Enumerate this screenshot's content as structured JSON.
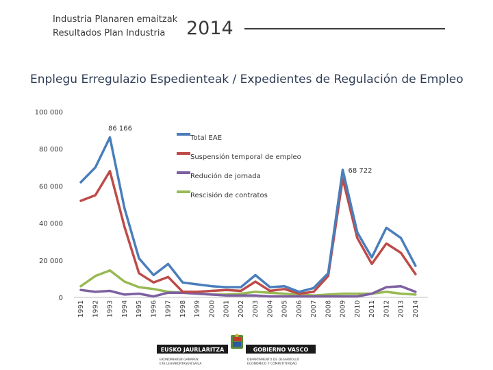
{
  "header": {
    "line1": "Industria Planaren emaitzak",
    "line2": "Resultados Plan Industria",
    "year": "2014"
  },
  "chart_data": {
    "type": "line",
    "title": "Enplegu Erregulazio Espedienteak / Expedientes de Regulación de Empleo",
    "xlabel": "",
    "ylabel": "",
    "ylim": [
      0,
      100000
    ],
    "yticks": [
      0,
      20000,
      40000,
      60000,
      80000,
      100000
    ],
    "ytick_labels": [
      "0",
      "20 000",
      "40 000",
      "60 000",
      "80 000",
      "100 000"
    ],
    "grid": false,
    "legend_position": "inside-top-center",
    "categories": [
      "1991",
      "1992",
      "1993",
      "1994",
      "1995",
      "1996",
      "1997",
      "1998",
      "1999",
      "2000",
      "2001",
      "2002",
      "2003",
      "2004",
      "2005",
      "2006",
      "2007",
      "2008",
      "2009",
      "2010",
      "2011",
      "2012",
      "2013",
      "2014"
    ],
    "series": [
      {
        "name": "Total EAE",
        "color": "#4a7ebb",
        "values": [
          62000,
          70000,
          86166,
          48000,
          21000,
          12000,
          18000,
          8000,
          7000,
          6000,
          5500,
          5500,
          12000,
          5500,
          6000,
          3000,
          5000,
          13000,
          68722,
          35000,
          21500,
          37500,
          32000,
          17000
        ]
      },
      {
        "name": "Suspensión temporal de empleo",
        "color": "#be4b48",
        "values": [
          52000,
          55000,
          68000,
          38000,
          13000,
          8000,
          11000,
          3000,
          3000,
          3500,
          4000,
          3500,
          8500,
          3500,
          4500,
          2000,
          3000,
          11500,
          64000,
          32000,
          18000,
          29000,
          24000,
          12500
        ]
      },
      {
        "name": "Redución de jornada",
        "color": "#7d60a0",
        "values": [
          4000,
          3000,
          3500,
          1500,
          2000,
          500,
          2500,
          2500,
          2000,
          1500,
          1000,
          1000,
          1000,
          500,
          500,
          500,
          500,
          500,
          500,
          500,
          2000,
          5500,
          6000,
          3000
        ]
      },
      {
        "name": "Rescisión de contratos",
        "color": "#98b954",
        "values": [
          6000,
          11500,
          14500,
          8500,
          5500,
          4500,
          3000,
          2500,
          2000,
          1500,
          1500,
          2000,
          3000,
          2500,
          2000,
          1500,
          1000,
          1500,
          2000,
          2000,
          2000,
          3000,
          2000,
          1500
        ]
      }
    ],
    "annotations": [
      {
        "text": "86 166",
        "category": "1993",
        "series": "Total EAE"
      },
      {
        "text": "68 722",
        "category": "2009",
        "series": "Total EAE"
      }
    ]
  },
  "footer": {
    "left_brand": "EUSKO JAURLARITZA",
    "right_brand": "GOBIERNO VASCO",
    "left_dept_line1": "EKONOMIAREN GARAPEN",
    "left_dept_line2": "ETA LEHIAKORTASUN SAILA",
    "right_dept_line1": "DEPARTAMENTO DE DESARROLLO",
    "right_dept_line2": "ECONÓMICO Y COMPETITIVIDAD",
    "brand_color": "#1a1a1a"
  }
}
